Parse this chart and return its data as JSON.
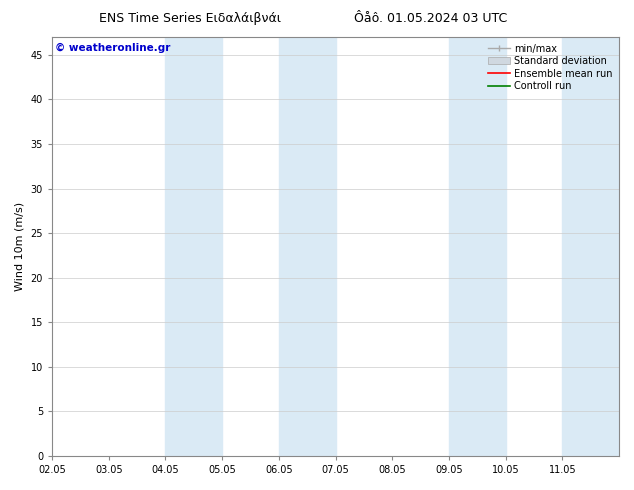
{
  "title_left": "ENS Time Series Ειδαλάιβνάι",
  "title_right": "Ôåô. 01.05.2024 03 UTC",
  "ylabel": "Wind 10m (m/s)",
  "watermark": "© weatheronline.gr",
  "xlim_start": 0,
  "xlim_end": 10,
  "ylim": [
    0,
    47
  ],
  "yticks": [
    0,
    5,
    10,
    15,
    20,
    25,
    30,
    35,
    40,
    45
  ],
  "xtick_labels": [
    "02.05",
    "03.05",
    "04.05",
    "05.05",
    "06.05",
    "07.05",
    "08.05",
    "09.05",
    "10.05",
    "11.05"
  ],
  "shaded_bands": [
    {
      "x_start": 2.0,
      "x_end": 3.0,
      "color": "#daeaf5"
    },
    {
      "x_start": 4.0,
      "x_end": 5.0,
      "color": "#daeaf5"
    },
    {
      "x_start": 7.0,
      "x_end": 8.0,
      "color": "#daeaf5"
    },
    {
      "x_start": 9.0,
      "x_end": 10.0,
      "color": "#daeaf5"
    }
  ],
  "background_color": "#ffffff",
  "plot_bg_color": "#ffffff",
  "font_color": "#000000",
  "watermark_color": "#0000cc",
  "grid_color": "#cccccc",
  "spine_color": "#888888",
  "title_fontsize": 9,
  "label_fontsize": 8,
  "tick_fontsize": 7,
  "legend_fontsize": 7
}
